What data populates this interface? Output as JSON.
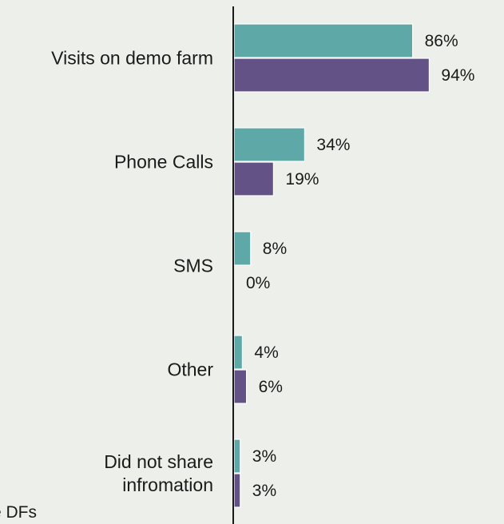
{
  "chart_data": {
    "type": "bar",
    "orientation": "horizontal",
    "categories": [
      [
        "Visits on demo farm"
      ],
      [
        "Phone Calls"
      ],
      [
        "SMS"
      ],
      [
        "Other"
      ],
      [
        "Did not share",
        "infromation"
      ]
    ],
    "series": [
      {
        "color": "#5fa8a8",
        "values": [
          86,
          34,
          8,
          4,
          3
        ]
      },
      {
        "color": "#635286",
        "values": [
          94,
          19,
          0,
          6,
          3
        ]
      }
    ],
    "value_suffix": "%",
    "xlim": [
      0,
      100
    ],
    "grid": false
  },
  "footnote": "e DFs"
}
